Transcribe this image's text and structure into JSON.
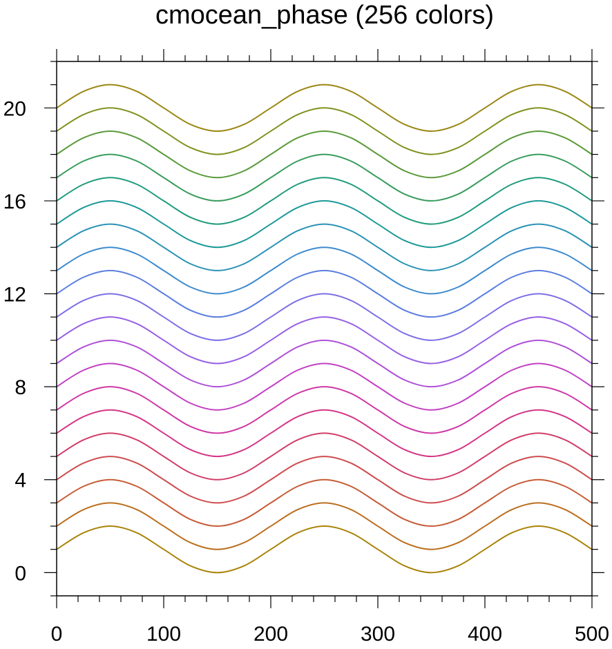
{
  "chart_data": {
    "type": "line",
    "title": "cmocean_phase (256 colors)",
    "xlabel": "",
    "ylabel": "",
    "xlim": [
      0,
      500
    ],
    "ylim": [
      -1,
      22
    ],
    "x_major_ticks": [
      0,
      100,
      200,
      300,
      400,
      500
    ],
    "x_minor_step": 20,
    "y_major_ticks": [
      0,
      4,
      8,
      12,
      16,
      20
    ],
    "y_minor_step": 1,
    "grid": false,
    "legend": "none",
    "x": [
      0,
      25,
      50,
      75,
      100,
      125,
      150,
      175,
      200,
      225,
      250,
      275,
      300,
      325,
      350,
      375,
      400,
      425,
      450,
      475,
      500
    ],
    "series": [
      {
        "color": "#a98308",
        "values": [
          1,
          1.71,
          2,
          1.71,
          1,
          0.29,
          0,
          0.29,
          1,
          1.71,
          2,
          1.71,
          1,
          0.29,
          0,
          0.29,
          1,
          1.71,
          2,
          1.71,
          1
        ]
      },
      {
        "color": "#bb6e1d",
        "values": [
          2,
          2.71,
          3,
          2.71,
          2,
          1.29,
          1,
          1.29,
          2,
          2.71,
          3,
          2.71,
          2,
          1.29,
          1,
          1.29,
          2,
          2.71,
          3,
          2.71,
          2
        ]
      },
      {
        "color": "#c65c37",
        "values": [
          3,
          3.71,
          4,
          3.71,
          3,
          2.29,
          2,
          2.29,
          3,
          3.71,
          4,
          3.71,
          3,
          2.29,
          2,
          2.29,
          3,
          3.71,
          4,
          3.71,
          3
        ]
      },
      {
        "color": "#cd4c4f",
        "values": [
          4,
          4.71,
          5,
          4.71,
          4,
          3.29,
          3,
          3.29,
          4,
          4.71,
          5,
          4.71,
          4,
          3.29,
          3,
          3.29,
          4,
          4.71,
          5,
          4.71,
          4
        ]
      },
      {
        "color": "#d13d68",
        "values": [
          5,
          5.71,
          6,
          5.71,
          5,
          4.29,
          4,
          4.29,
          5,
          5.71,
          6,
          5.71,
          5,
          4.29,
          4,
          4.29,
          5,
          5.71,
          6,
          5.71,
          5
        ]
      },
      {
        "color": "#d33586",
        "values": [
          6,
          6.71,
          7,
          6.71,
          6,
          5.29,
          5,
          5.29,
          6,
          6.71,
          7,
          6.71,
          6,
          5.29,
          5,
          5.29,
          6,
          6.71,
          7,
          6.71,
          6
        ]
      },
      {
        "color": "#cf36a5",
        "values": [
          7,
          7.71,
          8,
          7.71,
          7,
          6.29,
          6,
          6.29,
          7,
          7.71,
          8,
          7.71,
          7,
          6.29,
          6,
          6.29,
          7,
          7.71,
          8,
          7.71,
          7
        ]
      },
      {
        "color": "#c240c3",
        "values": [
          8,
          8.71,
          9,
          8.71,
          8,
          7.29,
          7,
          7.29,
          8,
          8.71,
          9,
          8.71,
          8,
          7.29,
          7,
          7.29,
          8,
          8.71,
          9,
          8.71,
          8
        ]
      },
      {
        "color": "#ae50d8",
        "values": [
          9,
          9.71,
          10,
          9.71,
          9,
          8.29,
          8,
          8.29,
          9,
          9.71,
          10,
          9.71,
          9,
          8.29,
          8,
          8.29,
          9,
          9.71,
          10,
          9.71,
          9
        ]
      },
      {
        "color": "#9660e4",
        "values": [
          10,
          10.71,
          11,
          10.71,
          10,
          9.29,
          9,
          9.29,
          10,
          10.71,
          11,
          10.71,
          10,
          9.29,
          9,
          9.29,
          10,
          10.71,
          11,
          10.71,
          10
        ]
      },
      {
        "color": "#7c6fe6",
        "values": [
          11,
          11.71,
          12,
          11.71,
          11,
          10.29,
          10,
          10.29,
          11,
          11.71,
          12,
          11.71,
          11,
          10.29,
          10,
          10.29,
          11,
          11.71,
          12,
          11.71,
          11
        ]
      },
      {
        "color": "#5a7ee0",
        "values": [
          12,
          12.71,
          13,
          12.71,
          12,
          11.29,
          11,
          11.29,
          12,
          12.71,
          13,
          12.71,
          12,
          11.29,
          11,
          11.29,
          12,
          12.71,
          13,
          12.71,
          12
        ]
      },
      {
        "color": "#3c8ace",
        "values": [
          13,
          13.71,
          14,
          13.71,
          13,
          12.29,
          12,
          12.29,
          13,
          13.71,
          14,
          13.71,
          13,
          12.29,
          12,
          12.29,
          13,
          13.71,
          14,
          13.71,
          13
        ]
      },
      {
        "color": "#2a92b4",
        "values": [
          14,
          14.71,
          15,
          14.71,
          14,
          13.29,
          13,
          13.29,
          14,
          14.71,
          15,
          14.71,
          14,
          13.29,
          13,
          13.29,
          14,
          14.71,
          15,
          14.71,
          14
        ]
      },
      {
        "color": "#1d9899",
        "values": [
          15,
          15.71,
          16,
          15.71,
          15,
          14.29,
          14,
          14.29,
          15,
          15.71,
          16,
          15.71,
          15,
          14.29,
          14,
          14.29,
          15,
          15.71,
          16,
          15.71,
          15
        ]
      },
      {
        "color": "#1f9b7c",
        "values": [
          16,
          16.71,
          17,
          16.71,
          16,
          15.29,
          15,
          15.29,
          16,
          16.71,
          17,
          16.71,
          16,
          15.29,
          15,
          15.29,
          16,
          16.71,
          17,
          16.71,
          16
        ]
      },
      {
        "color": "#389c5c",
        "values": [
          17,
          17.71,
          18,
          17.71,
          17,
          16.29,
          16,
          16.29,
          17,
          17.71,
          18,
          17.71,
          17,
          16.29,
          16,
          16.29,
          17,
          17.71,
          18,
          17.71,
          17
        ]
      },
      {
        "color": "#5a9a3c",
        "values": [
          18,
          18.71,
          19,
          18.71,
          18,
          17.29,
          17,
          17.29,
          18,
          18.71,
          19,
          18.71,
          18,
          17.29,
          17,
          17.29,
          18,
          18.71,
          19,
          18.71,
          18
        ]
      },
      {
        "color": "#7d931f",
        "values": [
          19,
          19.71,
          20,
          19.71,
          19,
          18.29,
          18,
          18.29,
          19,
          19.71,
          20,
          19.71,
          19,
          18.29,
          18,
          18.29,
          19,
          19.71,
          20,
          19.71,
          19
        ]
      },
      {
        "color": "#9a8714",
        "values": [
          20,
          20.71,
          21,
          20.71,
          20,
          19.29,
          19,
          19.29,
          20,
          20.71,
          21,
          20.71,
          20,
          19.29,
          19,
          19.29,
          20,
          20.71,
          21,
          20.71,
          20
        ]
      }
    ]
  }
}
